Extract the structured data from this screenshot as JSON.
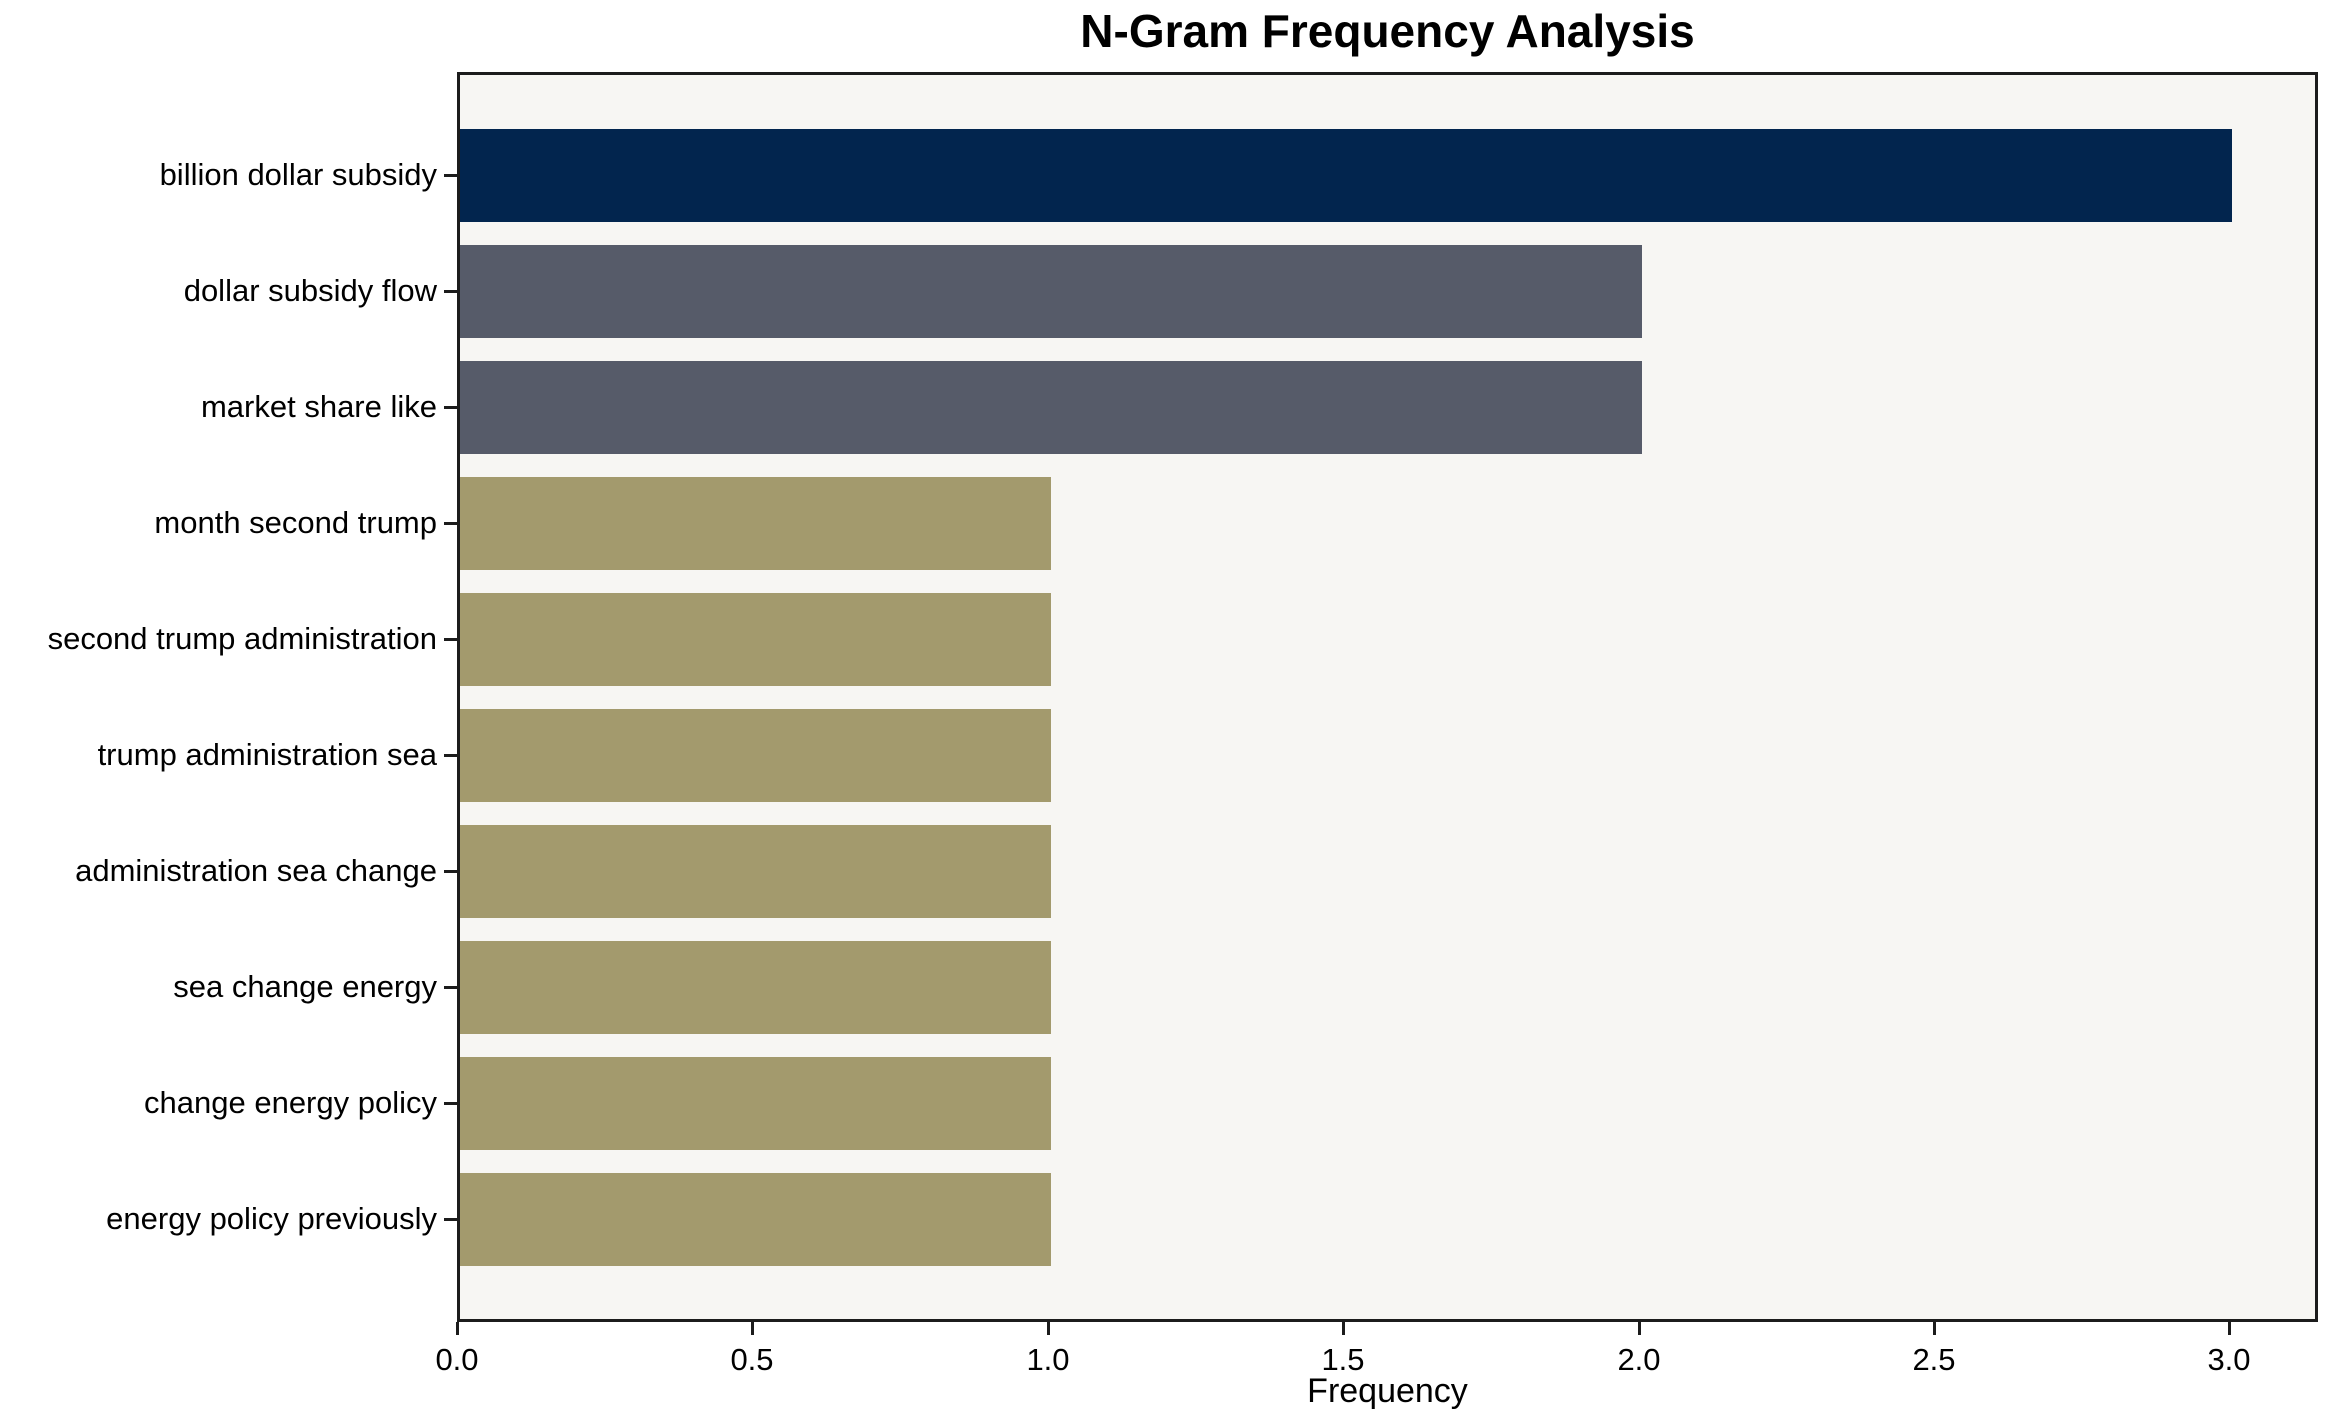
{
  "chart_data": {
    "type": "bar",
    "orientation": "horizontal",
    "title": "N-Gram Frequency Analysis",
    "xlabel": "Frequency",
    "ylabel": "",
    "categories": [
      "billion dollar subsidy",
      "dollar subsidy flow",
      "market share like",
      "month second trump",
      "second trump administration",
      "trump administration sea",
      "administration sea change",
      "sea change energy",
      "change energy policy",
      "energy policy previously"
    ],
    "values": [
      3,
      2,
      2,
      1,
      1,
      1,
      1,
      1,
      1,
      1
    ],
    "xlim": [
      0,
      3.15
    ],
    "x_ticks": [
      0.0,
      0.5,
      1.0,
      1.5,
      2.0,
      2.5,
      3.0
    ],
    "x_tick_labels": [
      "0.0",
      "0.5",
      "1.0",
      "1.5",
      "2.0",
      "2.5",
      "3.0"
    ],
    "grid": false,
    "legend_position": "none",
    "bar_colors": [
      "#02254e",
      "#565b69",
      "#565b69",
      "#a39a6d",
      "#a39a6d",
      "#a39a6d",
      "#a39a6d",
      "#a39a6d",
      "#a39a6d",
      "#a39a6d"
    ],
    "colors": {
      "figure_bg": "#ffffff",
      "plot_bg": "#f7f6f3",
      "spine": "#1c1c1c",
      "text": "#000000"
    }
  }
}
